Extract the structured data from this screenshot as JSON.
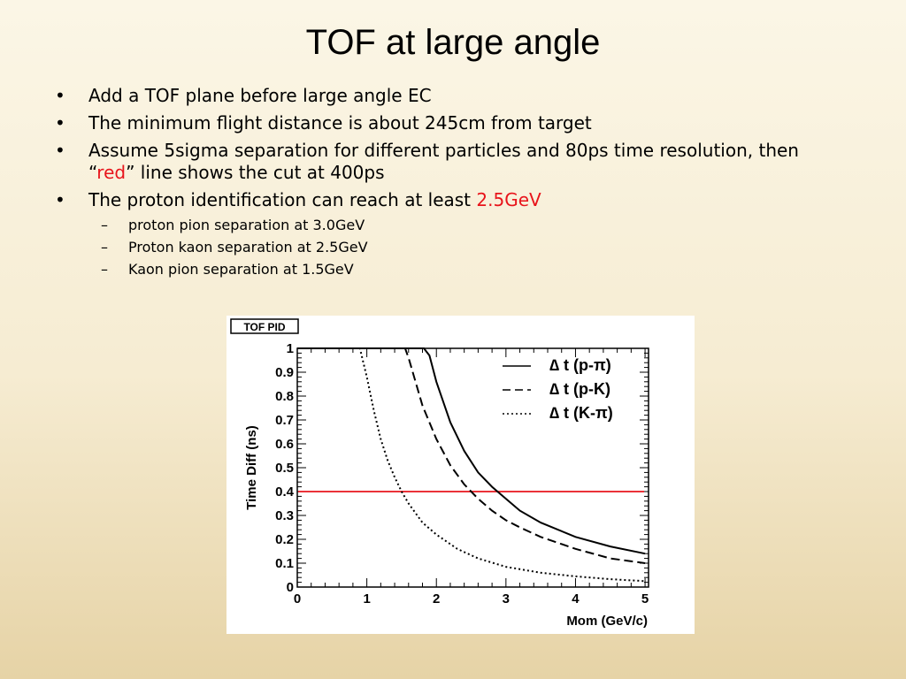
{
  "slide": {
    "title": "TOF at large angle",
    "bullet_marker": "•",
    "sub_marker": "–",
    "bullets": [
      {
        "text": "Add a TOF plane before large angle EC"
      },
      {
        "text": "The minimum flight distance is about 245cm from target"
      },
      {
        "line1": "Assume 5sigma separation for different particles and 80ps time resolution, then",
        "quote_open": "“",
        "red_word": "red",
        "line2_rest": "” line shows the cut at 400ps"
      },
      {
        "text_before": "The proton identification can reach at least ",
        "highlight": "2.5GeV"
      }
    ],
    "sub_bullets": [
      "proton pion separation at 3.0GeV",
      "Proton kaon separation at 2.5GeV",
      "Kaon pion separation at 1.5GeV"
    ]
  },
  "chart_data": {
    "type": "line",
    "tag": "TOF PID",
    "xlabel": "Mom (GeV/c)",
    "ylabel": "Time Diff (ns)",
    "xlim": [
      0,
      5.05
    ],
    "ylim": [
      0,
      1
    ],
    "x_ticks": [
      "0",
      "1",
      "2",
      "3",
      "4",
      "5"
    ],
    "y_ticks": [
      "0",
      "0.1",
      "0.2",
      "0.3",
      "0.4",
      "0.5",
      "0.6",
      "0.7",
      "0.8",
      "0.9",
      "1"
    ],
    "legend_position": "top-right",
    "series": [
      {
        "name": "∆ t (p-π)",
        "style": "solid",
        "color": "#000000",
        "x": [
          1.82,
          1.9,
          2.0,
          2.2,
          2.4,
          2.6,
          2.8,
          3.0,
          3.2,
          3.5,
          4.0,
          4.5,
          5.0
        ],
        "y": [
          1.0,
          0.97,
          0.86,
          0.69,
          0.57,
          0.48,
          0.42,
          0.37,
          0.32,
          0.27,
          0.21,
          0.17,
          0.14
        ]
      },
      {
        "name": "∆ t (p-K)",
        "style": "dashed",
        "color": "#000000",
        "x": [
          1.55,
          1.6,
          1.8,
          2.0,
          2.2,
          2.4,
          2.6,
          2.8,
          3.0,
          3.2,
          3.5,
          4.0,
          4.5,
          5.0
        ],
        "y": [
          1.0,
          0.96,
          0.76,
          0.62,
          0.51,
          0.43,
          0.37,
          0.32,
          0.28,
          0.25,
          0.21,
          0.16,
          0.12,
          0.1
        ]
      },
      {
        "name": "∆ t (K-π)",
        "style": "dotted",
        "color": "#000000",
        "x": [
          0.9,
          1.0,
          1.1,
          1.2,
          1.3,
          1.4,
          1.5,
          1.6,
          1.8,
          2.0,
          2.3,
          2.6,
          3.0,
          3.5,
          4.0,
          4.5,
          5.0
        ],
        "y": [
          1.0,
          0.88,
          0.74,
          0.62,
          0.53,
          0.46,
          0.4,
          0.35,
          0.27,
          0.22,
          0.16,
          0.12,
          0.085,
          0.06,
          0.045,
          0.033,
          0.025
        ]
      }
    ],
    "cut_line": {
      "y": 0.4,
      "color": "#e8141b"
    }
  }
}
